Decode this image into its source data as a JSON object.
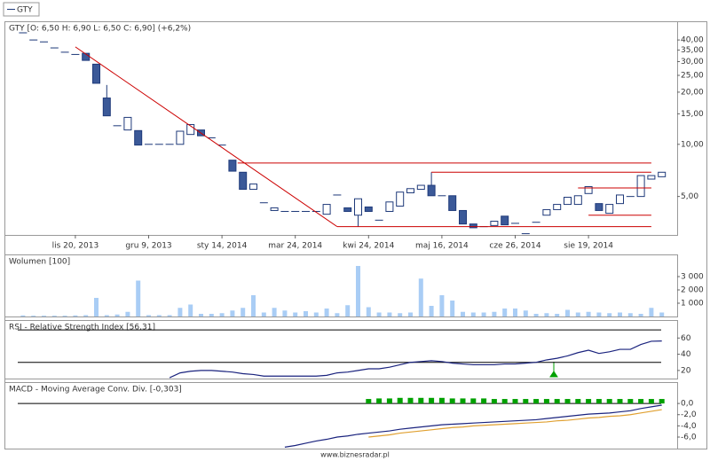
{
  "symbol": "GTY",
  "footer": "www.biznesradar.pl",
  "chart_data": [
    {
      "type": "candlestick",
      "title": "GTY [O: 6,50  H: 6,90  L: 6,50  C: 6,90] (+6,2%)",
      "log": true,
      "categories": [
        null,
        null,
        null,
        null,
        null,
        "lis 20, 2013",
        null,
        null,
        null,
        null,
        null,
        null,
        "gru 9, 2013",
        null,
        null,
        null,
        null,
        null,
        null,
        "sty 14, 2014",
        null,
        null,
        null,
        null,
        null,
        null,
        "mar 24, 2014",
        null,
        null,
        null,
        null,
        null,
        null,
        "kwi 24, 2014",
        null,
        null,
        null,
        null,
        null,
        null,
        "maj 16, 2014",
        null,
        null,
        null,
        null,
        null,
        null,
        "cze 26, 2014",
        null,
        null,
        null,
        null,
        null,
        null,
        "sie 19, 2014",
        null,
        null,
        null,
        null,
        null,
        null,
        null
      ],
      "open": [
        44,
        40,
        39,
        36,
        34,
        33,
        33.5,
        29,
        18.5,
        12.8,
        12.1,
        12,
        10,
        10,
        10,
        10,
        11.4,
        12.1,
        10.9,
        9.9,
        8.1,
        6.9,
        5.5,
        4.6,
        4.15,
        4.1,
        4.1,
        4.1,
        4.1,
        3.95,
        5.1,
        4.3,
        3.9,
        4.35,
        3.65,
        4.1,
        4.4,
        5.25,
        5.5,
        5.8,
        5.05,
        5.05,
        4.15,
        3.47,
        3.35,
        3.4,
        3.85,
        3.5,
        3.05,
        3.55,
        3.9,
        4.2,
        4.5,
        4.5,
        5.2,
        4.55,
        4,
        4.55,
        5,
        5,
        6.3,
        6.5
      ],
      "high": [
        44,
        40,
        39,
        36,
        34,
        33,
        33.5,
        29,
        22,
        12.8,
        14.3,
        12,
        10,
        10,
        10,
        11.9,
        13,
        12.1,
        10.9,
        9.9,
        8.1,
        6.9,
        5.9,
        4.6,
        4.3,
        4.1,
        4.1,
        4.1,
        4.1,
        4.5,
        5.1,
        4.3,
        4.85,
        4.35,
        3.65,
        4.65,
        5.3,
        5.55,
        5.8,
        6.9,
        5.05,
        5.05,
        4.15,
        3.47,
        3.35,
        3.6,
        3.85,
        3.5,
        3.05,
        3.55,
        4.2,
        4.5,
        4.95,
        5.05,
        5.7,
        4.55,
        4.5,
        5.1,
        5,
        6.6,
        6.6,
        6.9
      ],
      "low": [
        44,
        40,
        39,
        36,
        34,
        33,
        30.5,
        22.5,
        14.6,
        12.8,
        12.1,
        9.9,
        10,
        10,
        10,
        10,
        11.4,
        11.2,
        10.9,
        9.9,
        7,
        5.5,
        5.5,
        4.6,
        4.15,
        4.1,
        4.1,
        4.1,
        4.1,
        3.95,
        5.1,
        4.1,
        3.35,
        4.1,
        3.65,
        4.1,
        4.4,
        5.25,
        5.5,
        5.05,
        5.05,
        4.15,
        3.47,
        3.3,
        3.35,
        3.4,
        3.43,
        3.5,
        3.05,
        3.55,
        3.9,
        4.2,
        4.5,
        4.5,
        5.2,
        4.15,
        4,
        4.55,
        5,
        5,
        6.3,
        6.5
      ],
      "close": [
        44,
        40,
        39,
        36,
        34,
        33,
        30.5,
        22.5,
        14.6,
        12.8,
        14.3,
        9.9,
        10,
        10,
        10,
        11.9,
        13,
        11.2,
        10.9,
        9.9,
        7,
        5.5,
        5.9,
        4.6,
        4.3,
        4.1,
        4.1,
        4.1,
        4.1,
        4.5,
        5.1,
        4.1,
        4.85,
        4.1,
        3.65,
        4.65,
        5.3,
        5.55,
        5.8,
        5.05,
        5.05,
        4.15,
        3.47,
        3.3,
        3.35,
        3.6,
        3.43,
        3.5,
        3.05,
        3.55,
        4.2,
        4.5,
        4.95,
        5.05,
        5.7,
        4.15,
        4.5,
        5.1,
        5,
        6.6,
        6.6,
        6.9
      ],
      "up_color": "#ffffff",
      "down_color": "#3b5998",
      "edge_color": "#1f3a7a",
      "trendlines": [
        {
          "x": [
            5,
            30
          ],
          "y": [
            36.5,
            3.35
          ]
        },
        {
          "x": [
            20.5,
            60
          ],
          "y": [
            7.8,
            7.8
          ]
        },
        {
          "x": [
            39,
            60
          ],
          "y": [
            6.9,
            6.9
          ]
        },
        {
          "x": [
            53,
            60
          ],
          "y": [
            5.6,
            5.6
          ]
        },
        {
          "x": [
            54,
            60
          ],
          "y": [
            3.9,
            3.9
          ]
        },
        {
          "x": [
            30,
            60
          ],
          "y": [
            3.35,
            3.35
          ]
        }
      ],
      "trend_color": "#cc0000",
      "ylim": [
        3,
        49.5
      ],
      "yticks": [
        {
          "value": 5,
          "label": "5,00"
        },
        {
          "value": 10,
          "label": "10,00"
        },
        {
          "value": 15,
          "label": "15,00"
        },
        {
          "value": 20,
          "label": "20,00"
        },
        {
          "value": 25,
          "label": "25,00"
        },
        {
          "value": 30,
          "label": "30,00"
        },
        {
          "value": 35,
          "label": "35,00"
        },
        {
          "value": 40,
          "label": "40,00"
        }
      ]
    },
    {
      "type": "bar",
      "title": "Wolumen [100]",
      "color": "#a9cdf5",
      "values": [
        80,
        60,
        60,
        60,
        60,
        80,
        100,
        1400,
        100,
        150,
        350,
        2700,
        100,
        100,
        100,
        650,
        900,
        200,
        200,
        250,
        450,
        650,
        1600,
        300,
        650,
        450,
        300,
        400,
        300,
        600,
        250,
        850,
        3800,
        700,
        300,
        300,
        250,
        300,
        2850,
        800,
        1600,
        1200,
        350,
        300,
        300,
        350,
        600,
        600,
        450,
        200,
        250,
        200,
        500,
        300,
        350,
        300,
        250,
        300,
        250,
        200,
        650,
        300
      ],
      "ylim": [
        0,
        4600
      ],
      "yticks": [
        {
          "value": 1000,
          "label": "1 000"
        },
        {
          "value": 2000,
          "label": "2 000"
        },
        {
          "value": 3000,
          "label": "3 000"
        }
      ]
    },
    {
      "type": "line",
      "title": "RSI - Relative Strength Index [56,31]",
      "series": [
        {
          "color": "#1a237e",
          "values": [
            null,
            null,
            null,
            null,
            null,
            null,
            null,
            null,
            null,
            null,
            null,
            null,
            null,
            null,
            11,
            17,
            19,
            20,
            20,
            19,
            18,
            16,
            15,
            13,
            13,
            13,
            13,
            13,
            13,
            14,
            17,
            18,
            20,
            22,
            22,
            24,
            27,
            30,
            31,
            32,
            31,
            29,
            28,
            27,
            27,
            27,
            28,
            28,
            29,
            30,
            33,
            35,
            38,
            42,
            45,
            41,
            43,
            46,
            46,
            52,
            56,
            56.31
          ]
        }
      ],
      "levels": [
        30,
        70
      ],
      "ylim": [
        10,
        80
      ],
      "yticks": [
        20,
        40,
        60
      ]
    },
    {
      "type": "line",
      "title": "MACD - Moving Average Conv. Div. [-0,303]",
      "series": [
        {
          "type": "bar",
          "color": "#00a000",
          "values": [
            null,
            null,
            null,
            null,
            null,
            null,
            null,
            null,
            null,
            null,
            null,
            null,
            null,
            null,
            null,
            null,
            null,
            null,
            null,
            null,
            null,
            null,
            null,
            null,
            null,
            null,
            null,
            null,
            null,
            null,
            null,
            null,
            null,
            0.8,
            0.9,
            0.9,
            1,
            1,
            1,
            1,
            1,
            0.9,
            0.9,
            0.9,
            0.9,
            0.8,
            0.8,
            0.8,
            0.8,
            0.8,
            0.8,
            0.8,
            0.8,
            0.8,
            0.8,
            0.8,
            0.8,
            0.8,
            0.8,
            0.8,
            0.8,
            0.8
          ]
        },
        {
          "color": "#1a237e",
          "values": [
            null,
            null,
            null,
            null,
            null,
            null,
            null,
            null,
            null,
            null,
            null,
            null,
            null,
            null,
            null,
            null,
            null,
            null,
            null,
            null,
            null,
            null,
            null,
            null,
            null,
            -7.8,
            -7.5,
            -7.1,
            -6.7,
            -6.4,
            -6,
            -5.8,
            -5.5,
            -5.3,
            -5.1,
            -4.9,
            -4.6,
            -4.4,
            -4.2,
            -4,
            -3.8,
            -3.7,
            -3.6,
            -3.5,
            -3.4,
            -3.3,
            -3.2,
            -3.1,
            -3,
            -2.9,
            -2.7,
            -2.5,
            -2.3,
            -2.1,
            -1.9,
            -1.8,
            -1.7,
            -1.5,
            -1.3,
            -0.9,
            -0.6,
            -0.303
          ]
        },
        {
          "color": "#e0a030",
          "values": [
            null,
            null,
            null,
            null,
            null,
            null,
            null,
            null,
            null,
            null,
            null,
            null,
            null,
            null,
            null,
            null,
            null,
            null,
            null,
            null,
            null,
            null,
            null,
            null,
            null,
            null,
            null,
            null,
            null,
            null,
            null,
            null,
            null,
            -6,
            -5.8,
            -5.6,
            -5.3,
            -5.1,
            -4.9,
            -4.7,
            -4.5,
            -4.3,
            -4.2,
            -4,
            -3.9,
            -3.8,
            -3.7,
            -3.6,
            -3.5,
            -3.4,
            -3.3,
            -3.1,
            -3,
            -2.8,
            -2.6,
            -2.5,
            -2.3,
            -2.2,
            -2,
            -1.7,
            -1.4,
            -1.1
          ]
        }
      ],
      "ylim": [
        -7.9,
        3.5
      ],
      "yticks": [
        {
          "value": 0,
          "label": "0,0"
        },
        {
          "value": -2,
          "label": "-2,0"
        },
        {
          "value": -4,
          "label": "-4,0"
        },
        {
          "value": -6,
          "label": "-6,0"
        }
      ]
    }
  ]
}
